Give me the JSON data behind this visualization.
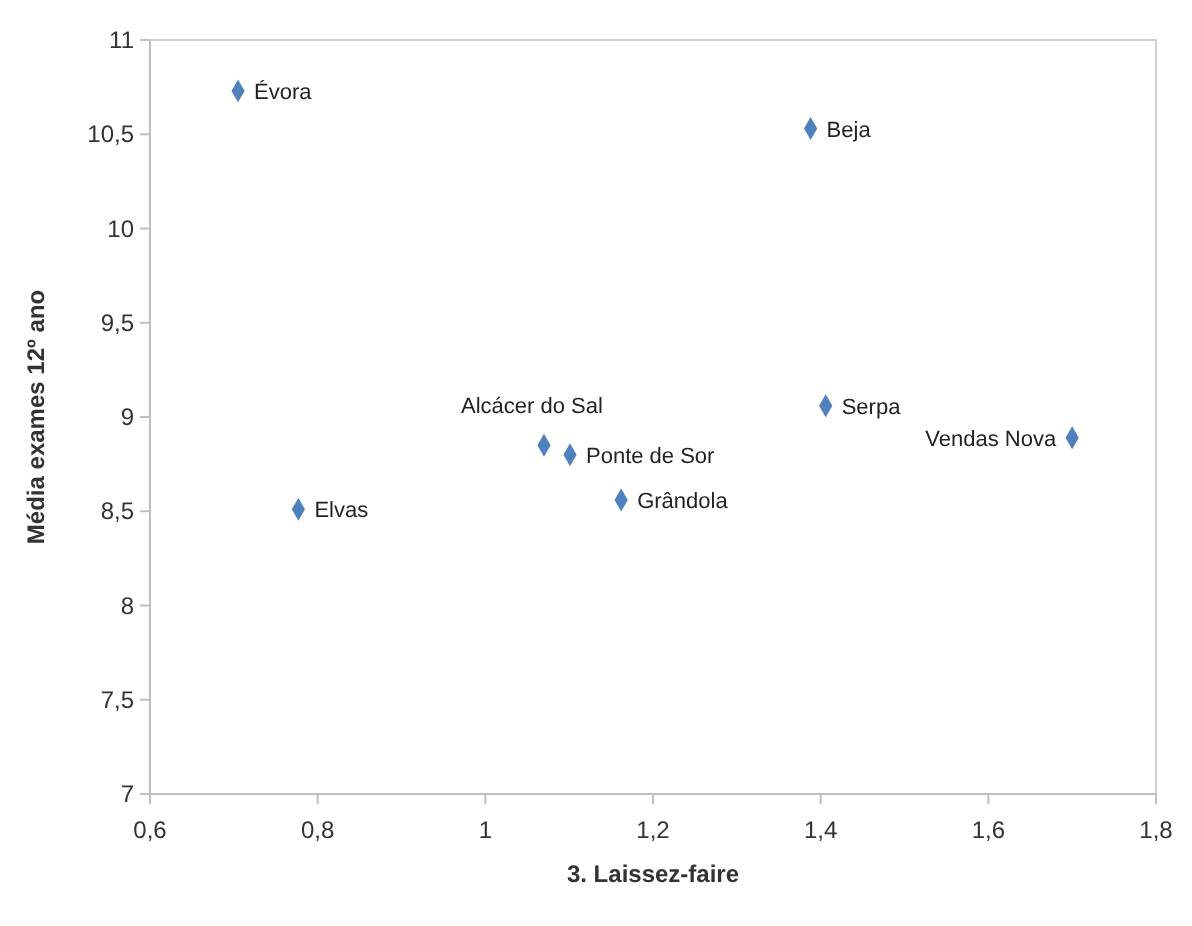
{
  "chart_data": {
    "type": "scatter",
    "xlabel": "3. Laissez-faire",
    "ylabel": "Média exames 12º ano",
    "marker": "diamond",
    "grid": false,
    "x": [
      0.705,
      1.388,
      1.07,
      1.101,
      1.162,
      1.406,
      0.777,
      1.7
    ],
    "series": [
      {
        "color": "#4f81bd",
        "values": [
          10.73,
          10.53,
          8.85,
          8.8,
          8.56,
          9.06,
          8.51,
          8.89
        ]
      }
    ],
    "annotations": [
      {
        "text": "Évora",
        "x": 0.705,
        "y": 10.73
      },
      {
        "text": "Beja",
        "x": 1.388,
        "y": 10.53
      },
      {
        "text": "Alcácer do Sal",
        "x": 1.07,
        "y": 8.85
      },
      {
        "text": "Ponte de Sor",
        "x": 1.101,
        "y": 8.8
      },
      {
        "text": "Grândola",
        "x": 1.162,
        "y": 8.56
      },
      {
        "text": "Serpa",
        "x": 1.406,
        "y": 9.06
      },
      {
        "text": "Elvas",
        "x": 0.777,
        "y": 8.51
      },
      {
        "text": "Vendas Nova",
        "x": 1.7,
        "y": 8.89
      }
    ],
    "xlim": [
      0.6,
      1.8
    ],
    "xticks": [
      {
        "value": 0.6,
        "label": "0,6"
      },
      {
        "value": 0.8,
        "label": "0,8"
      },
      1,
      {
        "value": 1.2,
        "label": "1,2"
      },
      {
        "value": 1.4,
        "label": "1,4"
      },
      {
        "value": 1.6,
        "label": "1,6"
      },
      {
        "value": 1.8,
        "label": "1,8"
      }
    ],
    "ylim": [
      7,
      11
    ],
    "yticks": [
      7,
      {
        "value": 7.5,
        "label": "7,5"
      },
      8,
      {
        "value": 8.5,
        "label": "8,5"
      },
      9,
      {
        "value": 9.5,
        "label": "9,5"
      },
      10,
      {
        "value": 10.5,
        "label": "10,5"
      },
      11
    ]
  }
}
